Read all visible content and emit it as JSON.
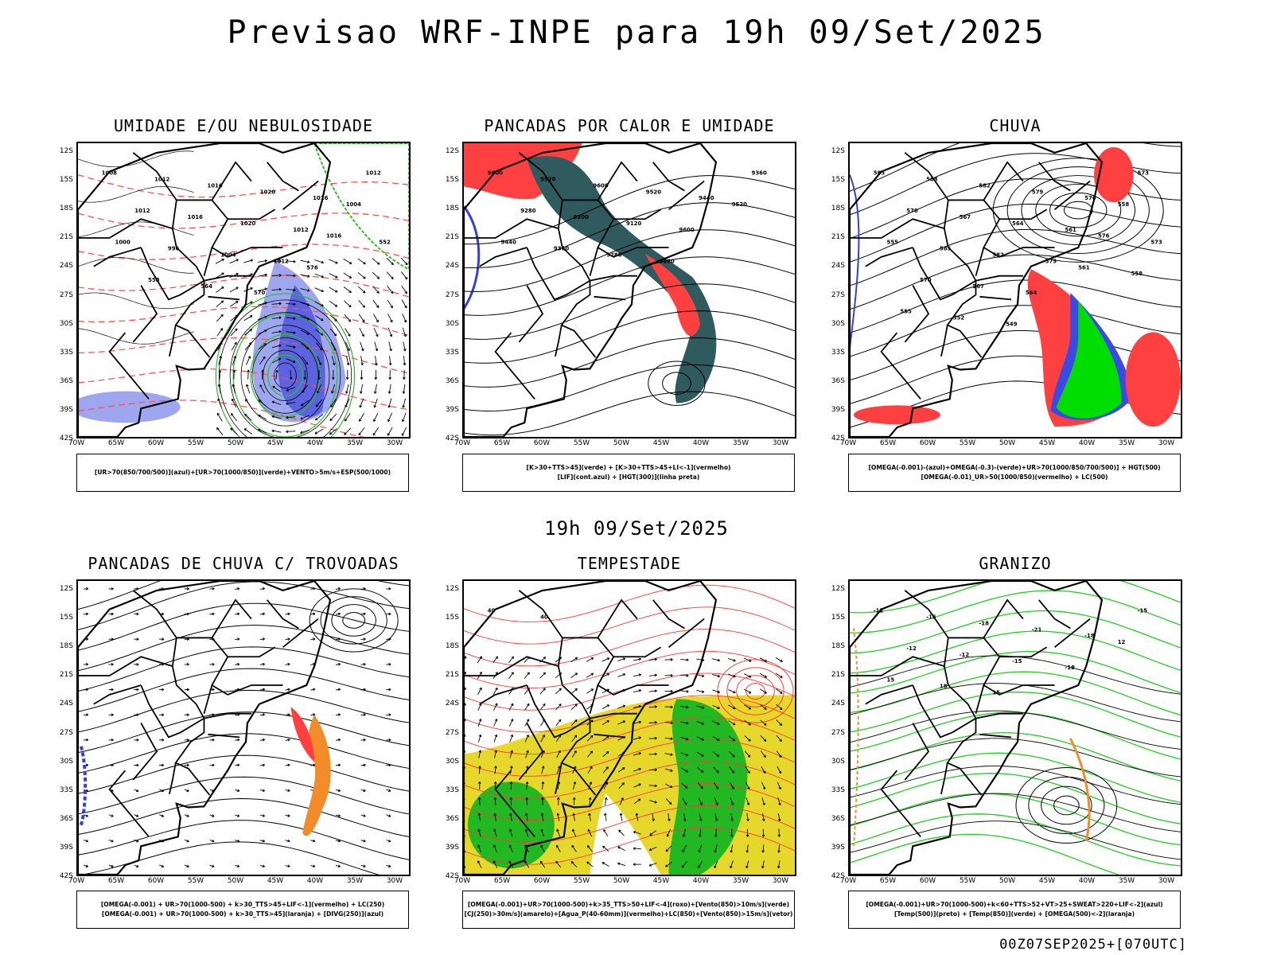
{
  "title": "Previsao WRF-INPE  para 19h 09/Set/2025",
  "mid_title": "19h 09/Set/2025",
  "footer": "00Z07SEP2025+[070UTC]",
  "lat_labels": [
    "12S",
    "15S",
    "18S",
    "21S",
    "24S",
    "27S",
    "30S",
    "33S",
    "36S",
    "39S",
    "42S"
  ],
  "lon_labels": [
    "70W",
    "65W",
    "60W",
    "55W",
    "50W",
    "45W",
    "40W",
    "35W",
    "30W"
  ],
  "panels": [
    {
      "title": "UMIDADE E/OU NEBULOSIDADE",
      "legend": [
        "[UR>70(850/700/500)](azul)+[UR>70(1000/850)](verde)+VENTO>5m/s+ESP(500/1000)"
      ],
      "contour_labels": [
        "1008",
        "1012",
        "1016",
        "1020",
        "1016",
        "1012",
        "1012",
        "1016",
        "1020",
        "1012",
        "1004",
        "1000",
        "996",
        "1004",
        "1012",
        "1016",
        "552",
        "558",
        "564",
        "570",
        "576"
      ]
    },
    {
      "title": "PANCADAS POR CALOR E UMIDADE",
      "legend": [
        "[K>30+TTS>45](verde) + [K>30+TTS>45+LI<-1](vermelho)",
        "[LIF](cont.azul) + [HGT(300)](linha preta)"
      ],
      "contour_labels": [
        "9600",
        "9520",
        "9600",
        "9520",
        "9440",
        "9360",
        "9280",
        "9200",
        "9120",
        "9600",
        "9520",
        "9440",
        "9360",
        "9280",
        "9120"
      ]
    },
    {
      "title": "CHUVA",
      "legend": [
        "[OMEGA(-0.001)-(azul)+OMEGA(-0.3)-(verde)+UR>70(1000/850/700/500)] + HGT(500)",
        "[OMEGA(-0.01)_UR>50(1000/850)(vermelho) + LC(500)"
      ],
      "contour_labels": [
        "585",
        "588",
        "582",
        "579",
        "576",
        "573",
        "570",
        "567",
        "564",
        "561",
        "558",
        "555",
        "585",
        "582",
        "579",
        "576",
        "573",
        "570",
        "567",
        "564",
        "561",
        "558",
        "555",
        "552",
        "549"
      ]
    },
    {
      "title": "PANCADAS DE CHUVA C/ TROVOADAS",
      "legend": [
        "[OMEGA(-0.001) + UR>70(1000-500) + k>30_TTS>45+LIF<-1](vermelho) + LC(250)",
        "[OMEGA(-0.001) + UR>70(1000-500) + k>30_TTS>45](laranja) + [DIVG(250)](azul)"
      ],
      "contour_labels": []
    },
    {
      "title": "TEMPESTADE",
      "legend": [
        "[OMEGA(-0.001)+UR>70(1000-500)+k>35_TTS>50+LIF<-4](roxo)+[Vento(850)>10m/s](verde)",
        "[CJ(250)>30m/s](amarelo)+[Agua_P(40-60mm)](vermelho)+LC(850)+[Vento(850)>15m/s](vetor)"
      ],
      "contour_labels": [
        "40",
        "40"
      ]
    },
    {
      "title": "GRANIZO",
      "legend": [
        "[OMEGA(-0.001)+UR>70(1000-500)+k<60+TTS>52+VT>25+SWEAT>220+LIF<-2](azul)",
        "[Temp(500)](preto) + [Temp(850)](verde) + [OMEGA(500)<-2](laranja)"
      ],
      "contour_labels": [
        "-12",
        "-15",
        "-18",
        "-21",
        "-18",
        "-15",
        "-12",
        "-12",
        "-15",
        "-18",
        "12",
        "15",
        "18",
        "15"
      ]
    }
  ]
}
